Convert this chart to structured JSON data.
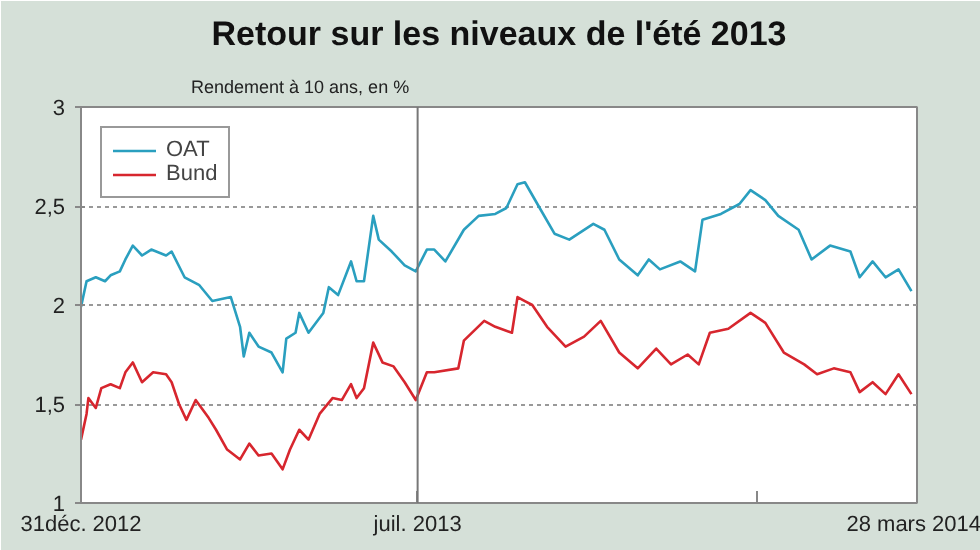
{
  "chart_data": {
    "type": "line",
    "title": "Retour sur les niveaux de l'été 2013",
    "ylabel": "Rendement à 10 ans, en %",
    "xlim": [
      "2012-12-31",
      "2014-03-28"
    ],
    "xticks": [
      {
        "value": "2012-12-31",
        "label": "31déc. 2012"
      },
      {
        "value": "2013-07-01",
        "label": "juil. 2013"
      },
      {
        "value": "2014-01-01",
        "label": null
      },
      {
        "value": "2014-03-28",
        "label": "28 mars 2014"
      }
    ],
    "ylim": [
      1,
      3
    ],
    "yticks": [
      1,
      {
        "value": 1.5,
        "label": "1,5"
      },
      2,
      {
        "value": 2.5,
        "label": "2,5"
      },
      3
    ],
    "grid": "y",
    "legend": "top left",
    "line_style": "solid",
    "ref_lines": [
      {
        "axis": "x",
        "value": "2013-07-01",
        "label": null,
        "color": "#777777"
      }
    ],
    "series": [
      {
        "name": "OAT",
        "color": "#2a9fbf",
        "x": [
          "2012-12-31",
          "2013-01-03",
          "2013-01-08",
          "2013-01-13",
          "2013-01-16",
          "2013-01-21",
          "2013-01-24",
          "2013-01-28",
          "2013-02-02",
          "2013-02-07",
          "2013-02-15",
          "2013-02-18",
          "2013-02-25",
          "2013-03-05",
          "2013-03-12",
          "2013-03-22",
          "2013-03-27",
          "2013-03-29",
          "2013-04-01",
          "2013-04-06",
          "2013-04-13",
          "2013-04-19",
          "2013-04-21",
          "2013-04-26",
          "2013-04-28",
          "2013-05-03",
          "2013-05-11",
          "2013-05-14",
          "2013-05-19",
          "2013-05-26",
          "2013-05-29",
          "2013-06-02",
          "2013-06-07",
          "2013-06-10",
          "2013-06-17",
          "2013-06-24",
          "2013-06-30",
          "2013-07-06",
          "2013-07-10",
          "2013-07-16",
          "2013-07-26",
          "2013-08-03",
          "2013-08-12",
          "2013-08-18",
          "2013-08-24",
          "2013-08-28",
          "2013-09-05",
          "2013-09-13",
          "2013-09-21",
          "2013-10-04",
          "2013-10-10",
          "2013-10-18",
          "2013-10-28",
          "2013-11-03",
          "2013-11-09",
          "2013-11-20",
          "2013-11-28",
          "2013-12-02",
          "2013-12-12",
          "2013-12-22",
          "2013-12-28",
          "2014-01-05",
          "2014-01-12",
          "2014-01-23",
          "2014-01-30",
          "2014-02-09",
          "2014-02-20",
          "2014-02-25",
          "2014-03-04",
          "2014-03-11",
          "2014-03-18",
          "2014-03-25"
        ],
        "values": [
          1.99,
          2.12,
          2.14,
          2.12,
          2.15,
          2.17,
          2.23,
          2.3,
          2.25,
          2.28,
          2.25,
          2.27,
          2.14,
          2.1,
          2.02,
          2.04,
          1.89,
          1.74,
          1.86,
          1.79,
          1.76,
          1.66,
          1.83,
          1.86,
          1.96,
          1.86,
          1.96,
          2.09,
          2.05,
          2.22,
          2.12,
          2.12,
          2.45,
          2.33,
          2.27,
          2.2,
          2.17,
          2.28,
          2.28,
          2.22,
          2.38,
          2.45,
          2.46,
          2.49,
          2.61,
          2.62,
          2.49,
          2.36,
          2.33,
          2.41,
          2.38,
          2.23,
          2.15,
          2.23,
          2.18,
          2.22,
          2.17,
          2.43,
          2.46,
          2.51,
          2.58,
          2.53,
          2.45,
          2.38,
          2.23,
          2.3,
          2.27,
          2.14,
          2.22,
          2.14,
          2.18,
          2.07
        ]
      },
      {
        "name": "Bund",
        "color": "#d7262e",
        "x": [
          "2012-12-31",
          "2013-01-03",
          "2013-01-04",
          "2013-01-08",
          "2013-01-11",
          "2013-01-16",
          "2013-01-21",
          "2013-01-24",
          "2013-01-28",
          "2013-02-02",
          "2013-02-08",
          "2013-02-15",
          "2013-02-18",
          "2013-02-22",
          "2013-02-26",
          "2013-03-03",
          "2013-03-10",
          "2013-03-14",
          "2013-03-20",
          "2013-03-27",
          "2013-04-01",
          "2013-04-06",
          "2013-04-13",
          "2013-04-19",
          "2013-04-23",
          "2013-04-28",
          "2013-05-03",
          "2013-05-09",
          "2013-05-16",
          "2013-05-21",
          "2013-05-26",
          "2013-05-29",
          "2013-06-02",
          "2013-06-07",
          "2013-06-12",
          "2013-06-18",
          "2013-06-24",
          "2013-06-30",
          "2013-07-06",
          "2013-07-10",
          "2013-07-23",
          "2013-07-26",
          "2013-08-06",
          "2013-08-12",
          "2013-08-21",
          "2013-08-24",
          "2013-08-28",
          "2013-09-01",
          "2013-09-09",
          "2013-09-19",
          "2013-09-29",
          "2013-10-08",
          "2013-10-18",
          "2013-10-28",
          "2013-11-07",
          "2013-11-15",
          "2013-11-24",
          "2013-11-30",
          "2013-12-06",
          "2013-12-16",
          "2013-12-28",
          "2014-01-05",
          "2014-01-15",
          "2014-01-26",
          "2014-02-02",
          "2014-02-11",
          "2014-02-20",
          "2014-02-25",
          "2014-03-04",
          "2014-03-11",
          "2014-03-18",
          "2014-03-25"
        ],
        "values": [
          1.32,
          1.45,
          1.53,
          1.48,
          1.58,
          1.6,
          1.58,
          1.66,
          1.71,
          1.61,
          1.66,
          1.65,
          1.61,
          1.5,
          1.42,
          1.52,
          1.43,
          1.37,
          1.27,
          1.22,
          1.3,
          1.24,
          1.25,
          1.17,
          1.27,
          1.37,
          1.32,
          1.45,
          1.53,
          1.52,
          1.6,
          1.53,
          1.58,
          1.81,
          1.71,
          1.69,
          1.61,
          1.52,
          1.66,
          1.66,
          1.68,
          1.82,
          1.92,
          1.89,
          1.86,
          2.04,
          2.02,
          2.0,
          1.89,
          1.79,
          1.84,
          1.92,
          1.76,
          1.68,
          1.78,
          1.7,
          1.75,
          1.7,
          1.86,
          1.88,
          1.96,
          1.91,
          1.76,
          1.7,
          1.65,
          1.68,
          1.66,
          1.56,
          1.61,
          1.55,
          1.65,
          1.55
        ]
      }
    ]
  }
}
